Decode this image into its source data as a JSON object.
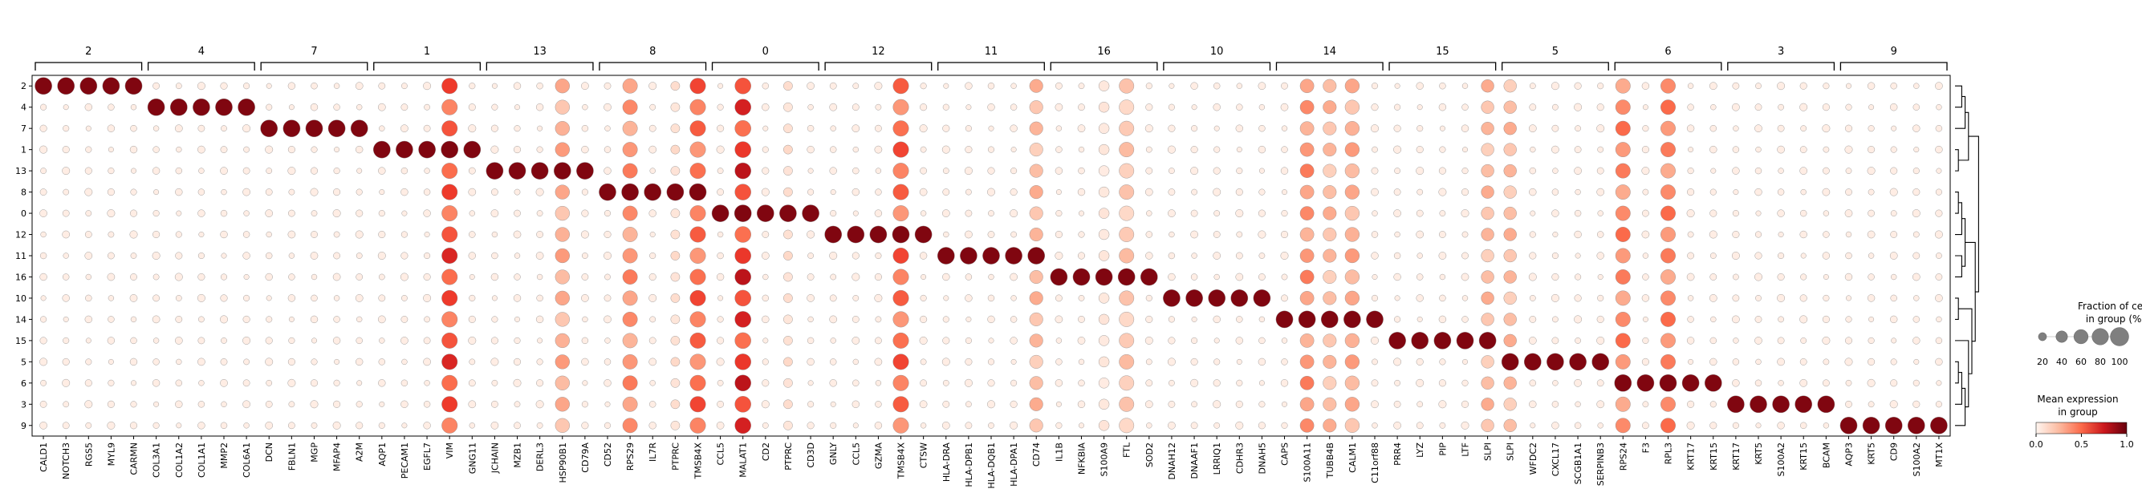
{
  "chart_data": {
    "type": "dotplot",
    "groups": [
      {
        "label": "2",
        "genes": [
          "CALD1",
          "NOTCH3",
          "RGS5",
          "MYL9",
          "CARMN"
        ]
      },
      {
        "label": "4",
        "genes": [
          "COL3A1",
          "COL1A2",
          "COL1A1",
          "MMP2",
          "COL6A1"
        ]
      },
      {
        "label": "7",
        "genes": [
          "DCN",
          "FBLN1",
          "MGP",
          "MFAP4",
          "A2M"
        ]
      },
      {
        "label": "1",
        "genes": [
          "AQP1",
          "PECAM1",
          "EGFL7",
          "VIM",
          "GNG11"
        ]
      },
      {
        "label": "13",
        "genes": [
          "JCHAIN",
          "MZB1",
          "DERL3",
          "HSP90B1",
          "CD79A"
        ]
      },
      {
        "label": "8",
        "genes": [
          "CD52",
          "RPS29",
          "IL7R",
          "PTPRC",
          "TMSB4X"
        ]
      },
      {
        "label": "0",
        "genes": [
          "CCL5",
          "MALAT1",
          "CD2",
          "PTPRC",
          "CD3D"
        ]
      },
      {
        "label": "12",
        "genes": [
          "GNLY",
          "CCL5",
          "GZMA",
          "TMSB4X",
          "CTSW"
        ]
      },
      {
        "label": "11",
        "genes": [
          "HLA-DRA",
          "HLA-DPB1",
          "HLA-DQB1",
          "HLA-DPA1",
          "CD74"
        ]
      },
      {
        "label": "16",
        "genes": [
          "IL1B",
          "NFKBIA",
          "S100A9",
          "FTL",
          "SOD2"
        ]
      },
      {
        "label": "10",
        "genes": [
          "DNAH12",
          "DNAAF1",
          "LRRIQ1",
          "CDHR3",
          "DNAH5"
        ]
      },
      {
        "label": "14",
        "genes": [
          "CAPS",
          "S100A11",
          "TUBB4B",
          "CALM1",
          "C11orf88"
        ]
      },
      {
        "label": "15",
        "genes": [
          "PRR4",
          "LYZ",
          "PIP",
          "LTF",
          "SLPI"
        ]
      },
      {
        "label": "5",
        "genes": [
          "SLPI",
          "WFDC2",
          "CXCL17",
          "SCGB1A1",
          "SERPINB3"
        ]
      },
      {
        "label": "6",
        "genes": [
          "RPS24",
          "F3",
          "RPL3",
          "KRT17",
          "KRT15"
        ]
      },
      {
        "label": "3",
        "genes": [
          "KRT17",
          "KRT5",
          "S100A2",
          "KRT15",
          "BCAM"
        ]
      },
      {
        "label": "9",
        "genes": [
          "AQP3",
          "KRT5",
          "CD9",
          "S100A2",
          "MT1X"
        ]
      }
    ],
    "rows": [
      "2",
      "4",
      "7",
      "1",
      "13",
      "8",
      "0",
      "12",
      "11",
      "16",
      "10",
      "14",
      "15",
      "5",
      "6",
      "3",
      "9"
    ],
    "size_legend": {
      "title_line1": "Fraction of cells",
      "title_line2": "in group (%)",
      "ticks": [
        "20",
        "40",
        "60",
        "80",
        "100"
      ]
    },
    "color_legend": {
      "title_line1": "Mean expression",
      "title_line2": "in group",
      "ticks": [
        "0.0",
        "0.5",
        "1.0"
      ],
      "colors": [
        "#fff5f0",
        "#fcbba1",
        "#fb6a4a",
        "#cb181d",
        "#67000d"
      ]
    },
    "dendrogram": true
  }
}
